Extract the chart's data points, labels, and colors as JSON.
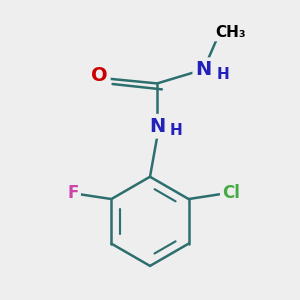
{
  "background_color": "#eeeeee",
  "bond_color": "#2d6e6e",
  "bond_width": 1.8,
  "atom_colors": {
    "O": "#cc0000",
    "N": "#2222bb",
    "H": "#2222bb",
    "Cl": "#44aa44",
    "F": "#cc44aa",
    "C": "#000000"
  },
  "figsize": [
    3.0,
    3.0
  ],
  "dpi": 100,
  "xlim": [
    -2.5,
    2.5
  ],
  "ylim": [
    -2.8,
    2.2
  ]
}
